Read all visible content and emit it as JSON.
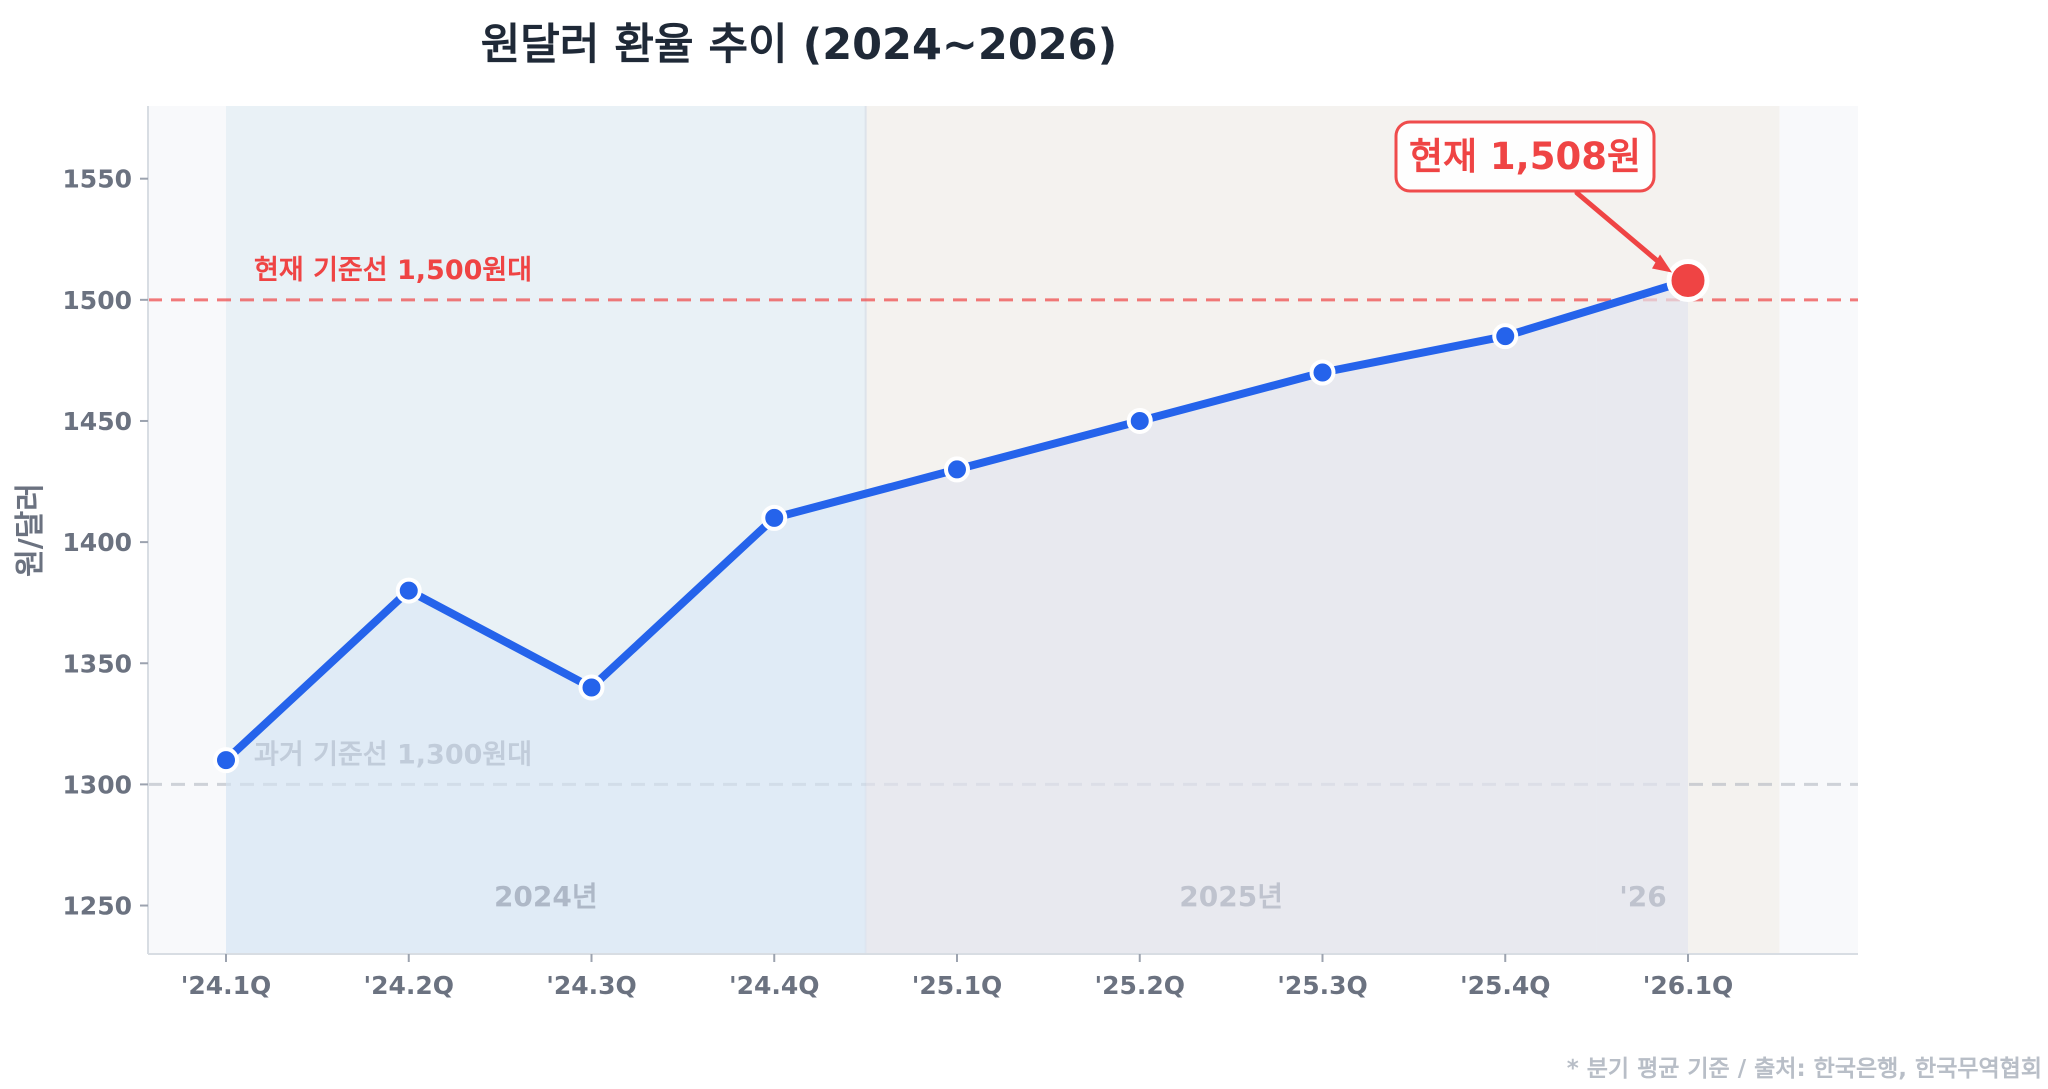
{
  "chart_data": {
    "type": "line",
    "title": "원달러 환율 추이 (2024~2026)",
    "ylabel": "원/달러",
    "xlabel": "",
    "categories": [
      "'24.1Q",
      "'24.2Q",
      "'24.3Q",
      "'24.4Q",
      "'25.1Q",
      "'25.2Q",
      "'25.3Q",
      "'25.4Q",
      "'26.1Q"
    ],
    "values": [
      1310,
      1380,
      1340,
      1410,
      1430,
      1450,
      1470,
      1485,
      1508
    ],
    "ylim": [
      1230,
      1580
    ],
    "yticks": [
      1250,
      1300,
      1350,
      1400,
      1450,
      1500,
      1550
    ],
    "grid": false,
    "line_color": "#2563eb",
    "highlight_color": "#ef4444",
    "reference_lines": [
      {
        "value": 1500,
        "label": "현재 기준선 1,500원대",
        "color": "#ef4444"
      },
      {
        "value": 1300,
        "label": "과거 기준선 1,300원대",
        "color": "#9ca3af"
      }
    ],
    "year_bands": [
      {
        "label": "2024년",
        "from": 0,
        "to": 3,
        "color": "#e6f0f4"
      },
      {
        "label": "2025년",
        "from": 4,
        "to": 7,
        "color": "#f3f1ec"
      },
      {
        "label": "'26",
        "from": 8,
        "to": 8,
        "color": "#f3f1ec"
      }
    ],
    "annotation": {
      "label": "현재 1,508원",
      "index": 8
    }
  },
  "footnote": "* 분기 평균 기준 / 출처: 한국은행, 한국무역협회"
}
